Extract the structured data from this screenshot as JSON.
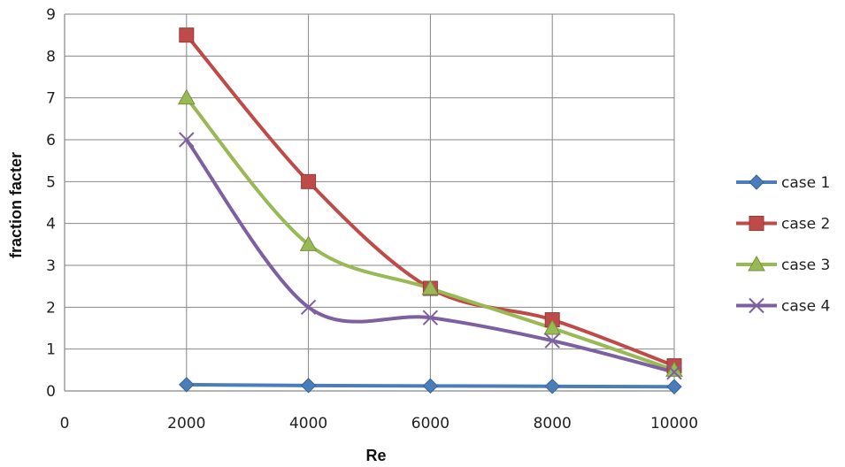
{
  "chart_data": {
    "type": "line",
    "title": "",
    "xlabel": "Re",
    "ylabel": "fraction facter",
    "xlim": [
      0,
      10000
    ],
    "ylim": [
      0,
      9
    ],
    "xticks": [
      0,
      2000,
      4000,
      6000,
      8000,
      10000
    ],
    "yticks": [
      0,
      1,
      2,
      3,
      4,
      5,
      6,
      7,
      8,
      9
    ],
    "grid": true,
    "legend_position": "right",
    "x": [
      2000,
      4000,
      6000,
      8000,
      10000
    ],
    "series": [
      {
        "name": "case 1",
        "color": "#4A7EBB",
        "marker": "diamond",
        "values": [
          0.15,
          0.13,
          0.12,
          0.11,
          0.1
        ]
      },
      {
        "name": "case 2",
        "color": "#BE4B48",
        "marker": "square",
        "values": [
          8.5,
          5.0,
          2.45,
          1.7,
          0.6
        ]
      },
      {
        "name": "case 3",
        "color": "#98B954",
        "marker": "triangle",
        "values": [
          7.0,
          3.5,
          2.45,
          1.5,
          0.5
        ]
      },
      {
        "name": "case 4",
        "color": "#7D60A0",
        "marker": "cross",
        "values": [
          6.0,
          2.0,
          1.75,
          1.2,
          0.45
        ]
      }
    ]
  }
}
